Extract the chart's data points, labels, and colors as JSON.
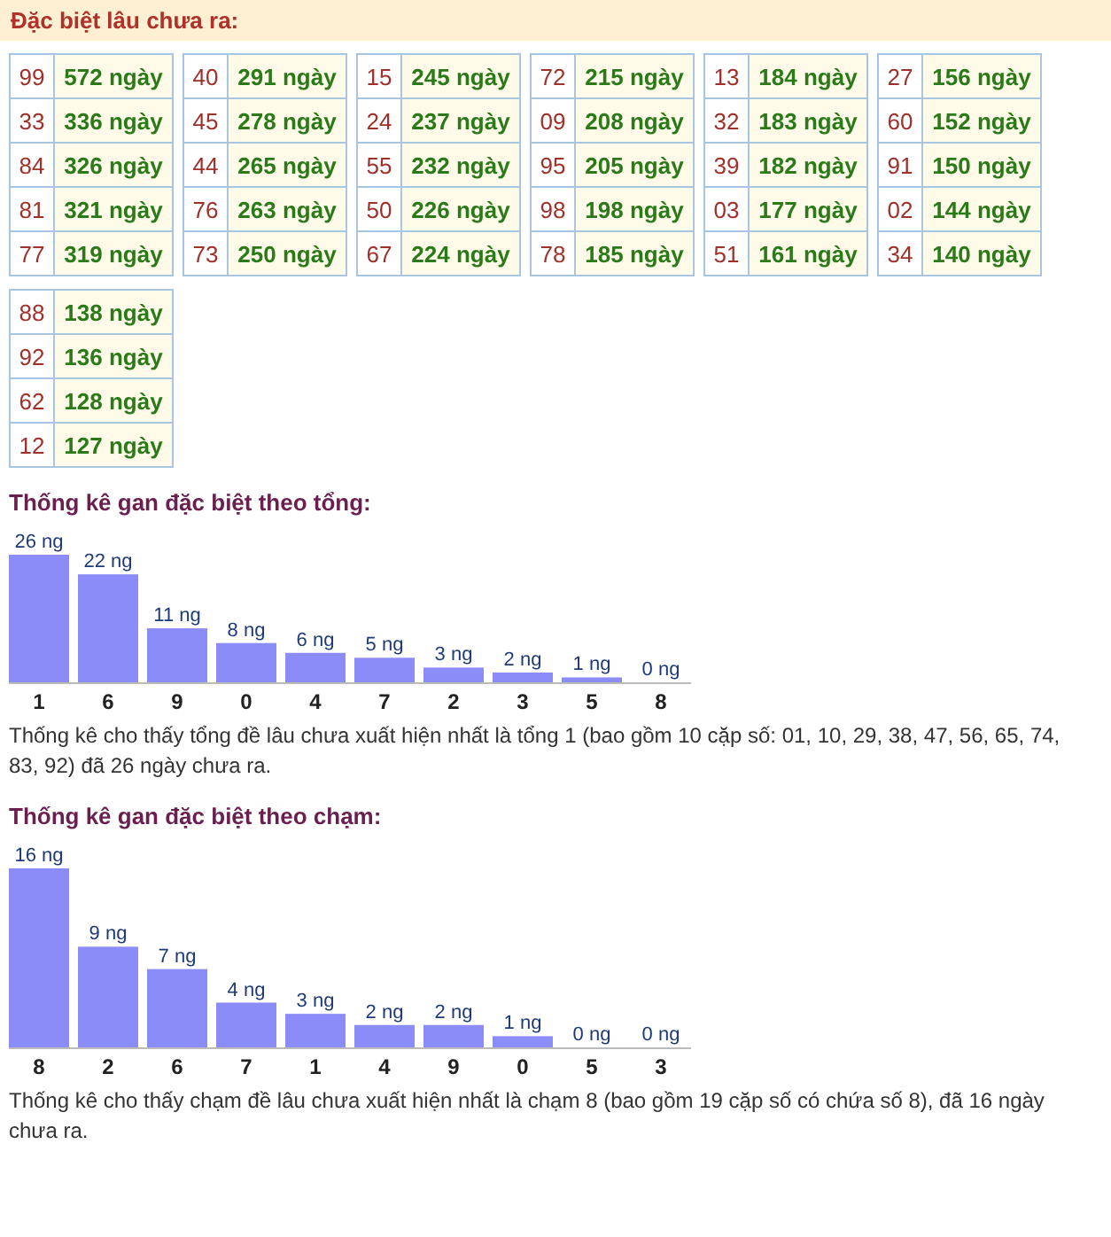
{
  "chart_data": [
    {
      "type": "other",
      "title": "Đặc biệt lâu chưa ra:",
      "categories": [
        "99",
        "33",
        "84",
        "81",
        "77",
        "40",
        "45",
        "44",
        "76",
        "73",
        "15",
        "24",
        "55",
        "50",
        "67",
        "72",
        "09",
        "95",
        "98",
        "78",
        "13",
        "32",
        "39",
        "03",
        "51",
        "27",
        "60",
        "91",
        "02",
        "34",
        "88",
        "92",
        "62",
        "12"
      ],
      "values": [
        572,
        336,
        326,
        321,
        319,
        291,
        278,
        265,
        263,
        250,
        245,
        237,
        232,
        226,
        224,
        215,
        208,
        205,
        198,
        185,
        184,
        183,
        182,
        177,
        161,
        156,
        152,
        150,
        144,
        140,
        138,
        136,
        128,
        127
      ],
      "value_labels": [
        "572 ngày",
        "336 ngày",
        "326 ngày",
        "321 ngày",
        "319 ngày",
        "291 ngày",
        "278 ngày",
        "265 ngày",
        "263 ngày",
        "250 ngày",
        "245 ngày",
        "237 ngày",
        "232 ngày",
        "226 ngày",
        "224 ngày",
        "215 ngày",
        "208 ngày",
        "205 ngày",
        "198 ngày",
        "185 ngày",
        "184 ngày",
        "183 ngày",
        "182 ngày",
        "177 ngày",
        "161 ngày",
        "156 ngày",
        "152 ngày",
        "150 ngày",
        "144 ngày",
        "140 ngày",
        "138 ngày",
        "136 ngày",
        "128 ngày",
        "127 ngày"
      ]
    },
    {
      "type": "bar",
      "title": "Thống kê gan đặc biệt theo tổng:",
      "categories": [
        "1",
        "6",
        "9",
        "0",
        "4",
        "7",
        "2",
        "3",
        "5",
        "8"
      ],
      "values": [
        26,
        22,
        11,
        8,
        6,
        5,
        3,
        2,
        1,
        0
      ],
      "value_labels": [
        "26 ng",
        "22 ng",
        "11 ng",
        "8 ng",
        "6 ng",
        "5 ng",
        "3 ng",
        "2 ng",
        "1 ng",
        "0 ng"
      ],
      "color": "#8c8cf8",
      "annotations": [
        "Thống kê cho thấy tổng đề lâu chưa xuất hiện nhất là tổng 1 (bao gồm 10 cặp số: 01, 10, 29, 38, 47, 56, 65, 74, 83, 92) đã 26 ngày chưa ra."
      ]
    },
    {
      "type": "bar",
      "title": "Thống kê gan đặc biệt theo chạm:",
      "categories": [
        "8",
        "2",
        "6",
        "7",
        "1",
        "4",
        "9",
        "0",
        "5",
        "3"
      ],
      "values": [
        16,
        9,
        7,
        4,
        3,
        2,
        2,
        1,
        0,
        0
      ],
      "value_labels": [
        "16 ng",
        "9 ng",
        "7 ng",
        "4 ng",
        "3 ng",
        "2 ng",
        "2 ng",
        "1 ng",
        "0 ng",
        "0 ng"
      ],
      "color": "#8c8cf8",
      "annotations": [
        "Thống kê cho thấy chạm đề lâu chưa xuất hiện nhất là chạm 8 (bao gồm 19 cặp số có chứa số 8), đã 16 ngày chưa ra."
      ]
    }
  ]
}
